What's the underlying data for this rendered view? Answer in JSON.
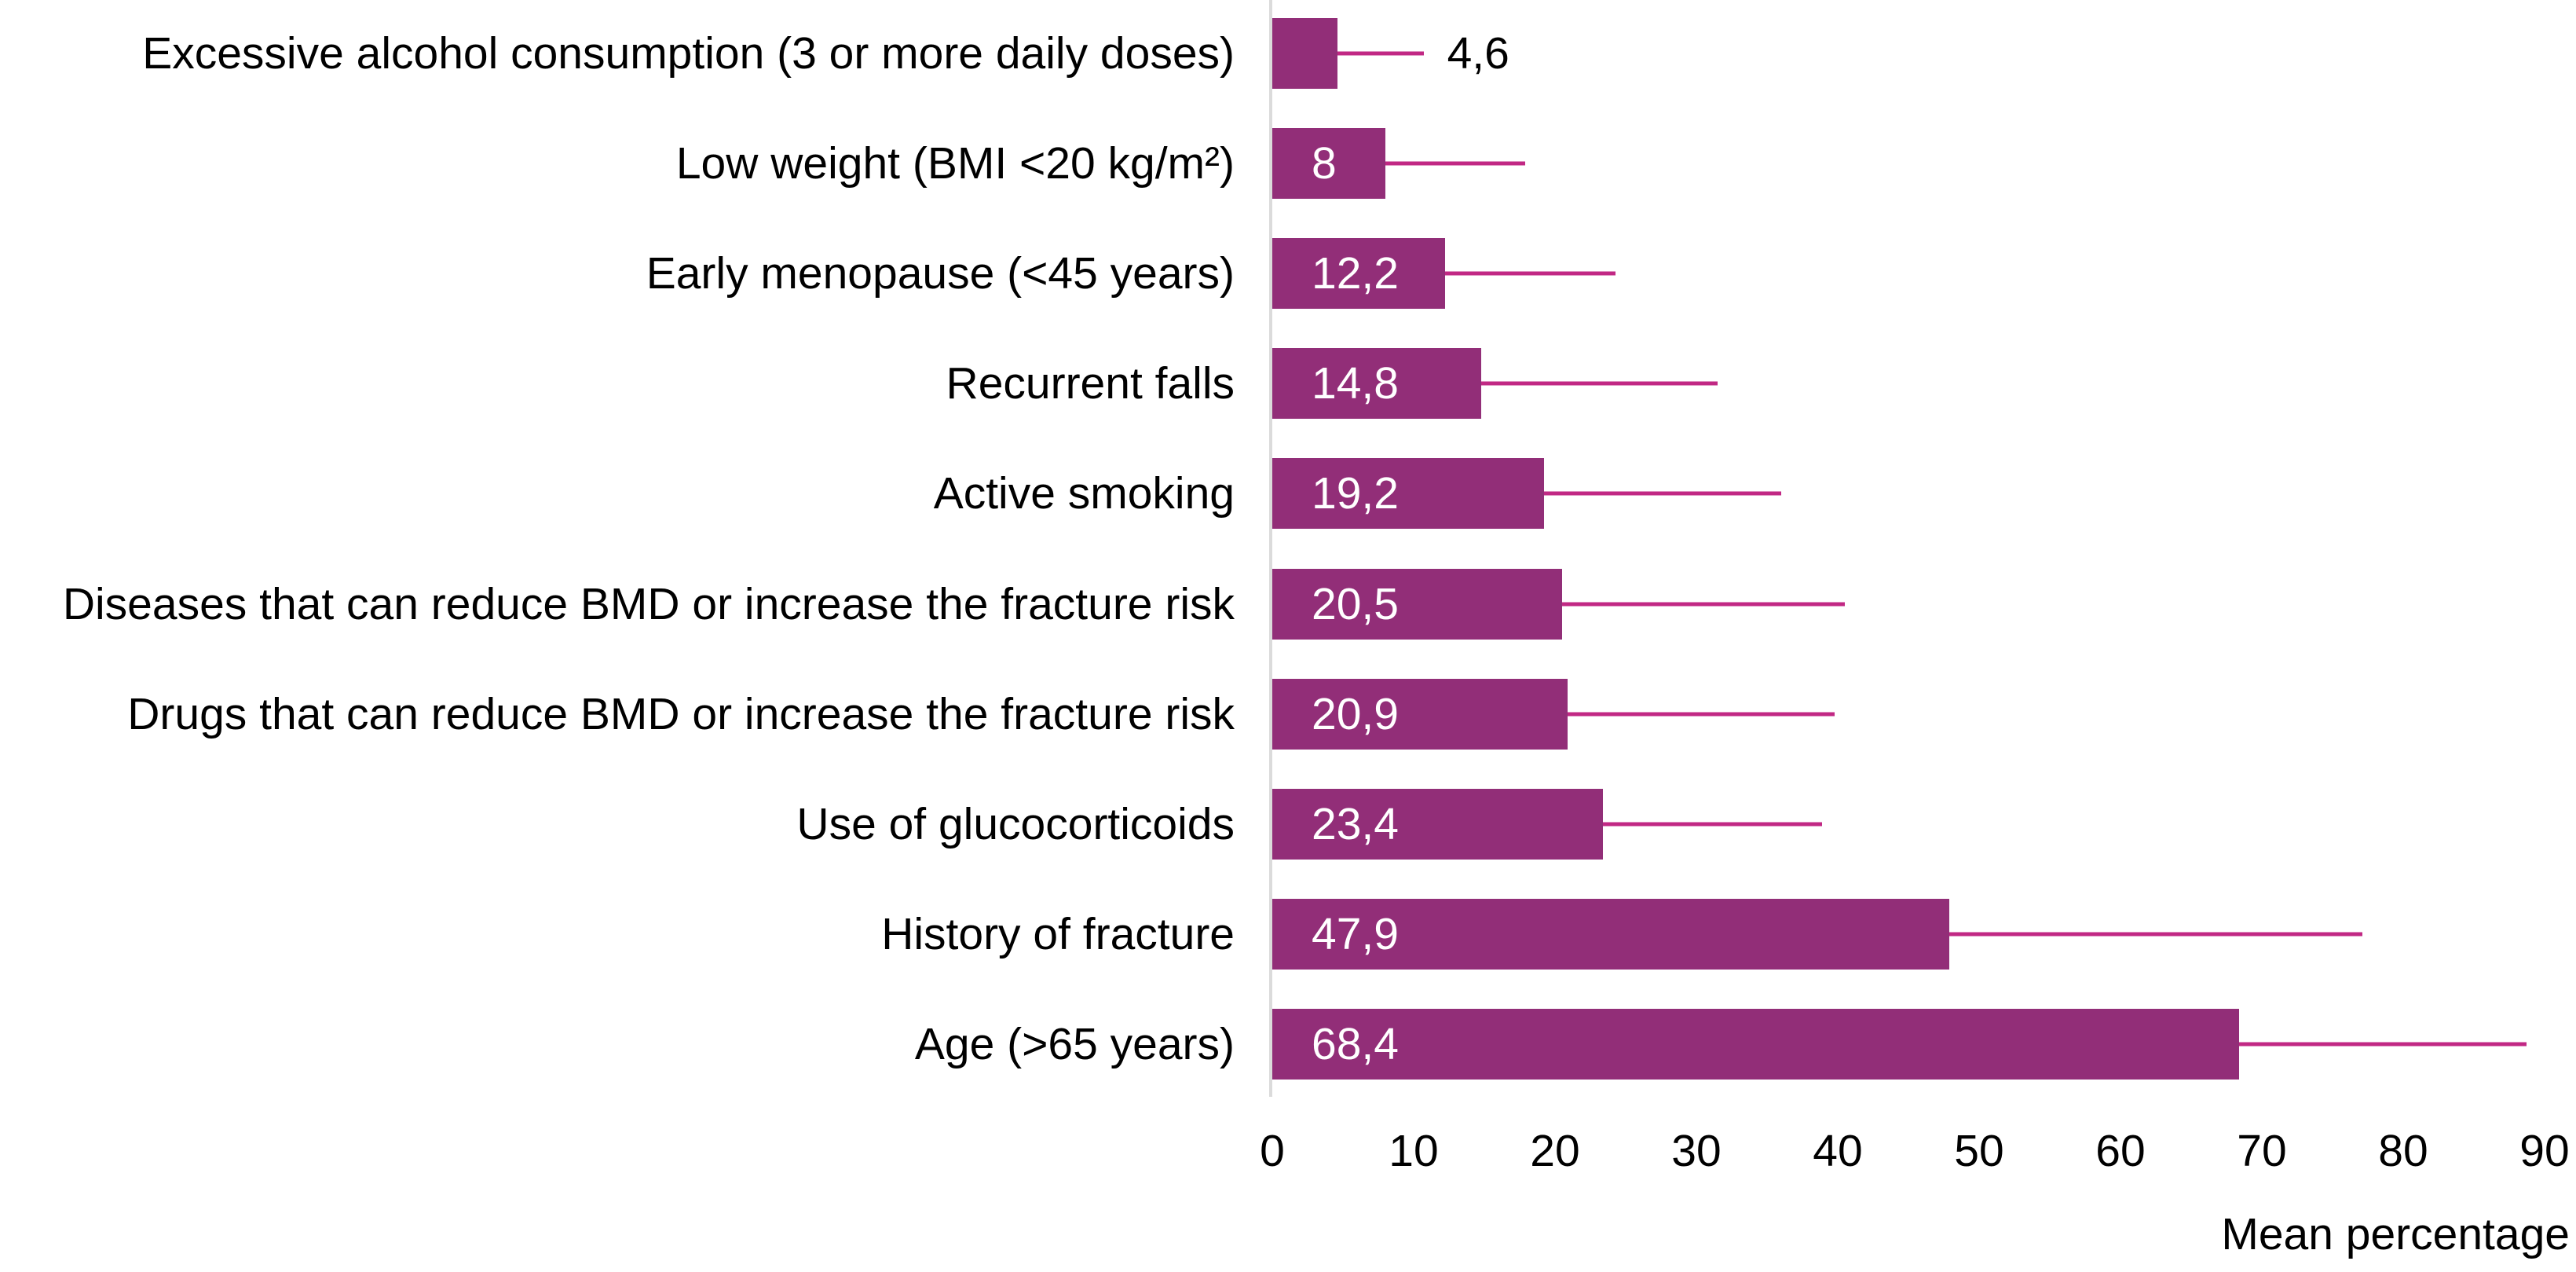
{
  "chart_data": {
    "type": "bar",
    "orientation": "horizontal",
    "title": "",
    "xlabel": "Mean percentage",
    "x_ticks": [
      0,
      10,
      20,
      30,
      40,
      50,
      60,
      70,
      80,
      90
    ],
    "xlim": [
      0,
      92
    ],
    "grid": false,
    "legend": null,
    "categories": [
      "Excessive alcohol consumption (3 or more daily doses)",
      "Low weight (BMI <20 kg/m²)",
      "Early menopause (<45 years)",
      "Recurrent falls",
      "Active smoking",
      "Diseases that can reduce BMD or increase the fracture risk",
      "Drugs that can reduce BMD or increase the fracture risk",
      "Use of glucocorticoids",
      "History of fracture",
      "Age (>65 years)"
    ],
    "values": [
      4.6,
      8,
      12.2,
      14.8,
      19.2,
      20.5,
      20.9,
      23.4,
      47.9,
      68.4
    ],
    "value_labels": [
      "4,6",
      "8",
      "12,2",
      "14,8",
      "19,2",
      "20,5",
      "20,9",
      "23,4",
      "47,9",
      "68,4"
    ],
    "error_upper": [
      10.7,
      17.9,
      24.3,
      31.5,
      36.0,
      40.5,
      39.8,
      38.9,
      77.1,
      88.7
    ],
    "bar_color": "#922E78",
    "error_color": "#C12884",
    "axis_line_color": "#DBDBDB",
    "text_color": "#000000",
    "value_label_inside_color": "#FFFFFF"
  }
}
